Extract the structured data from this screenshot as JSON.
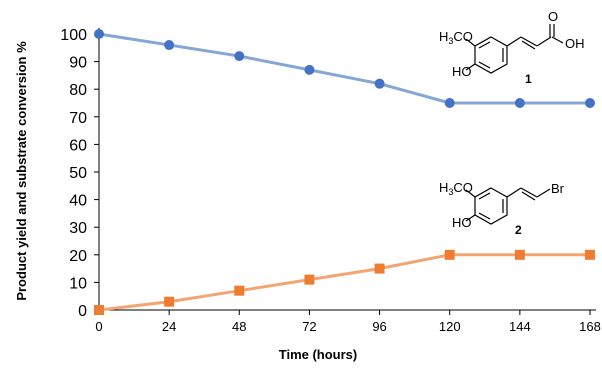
{
  "chart_data": {
    "type": "line",
    "xlabel": "Time (hours)",
    "ylabel": "Product yield and substrate conversion %",
    "x": [
      0,
      24,
      48,
      72,
      96,
      120,
      144,
      168
    ],
    "xlim": [
      0,
      168
    ],
    "ylim": [
      0,
      100
    ],
    "y_ticks": [
      0,
      10,
      20,
      30,
      40,
      50,
      60,
      70,
      80,
      90,
      100
    ],
    "grid": false,
    "series": [
      {
        "id": "substrate",
        "values": [
          100,
          96,
          92,
          87,
          82,
          75,
          75,
          75
        ],
        "color": "#4472C4",
        "line_color": "#86A7D3",
        "marker": "circle"
      },
      {
        "id": "product",
        "values": [
          0,
          3,
          7,
          11,
          15,
          20,
          20,
          20
        ],
        "color": "#ED7D31",
        "line_color": "#F2A573",
        "marker": "square"
      }
    ],
    "annotations": {
      "compound_1": {
        "substituent": "H3CO",
        "substituent_main": "H",
        "substituent_sub": "3",
        "substituent_rest": "CO",
        "hydroxyl": "HO",
        "carbonyl_o": "O",
        "acid_oh": "OH",
        "number": "1"
      },
      "compound_2": {
        "substituent": "H3CO",
        "substituent_main": "H",
        "substituent_sub": "3",
        "substituent_rest": "CO",
        "hydroxyl": "HO",
        "halogen": "Br",
        "halogen_color": "#E0201B",
        "number": "2"
      }
    }
  }
}
